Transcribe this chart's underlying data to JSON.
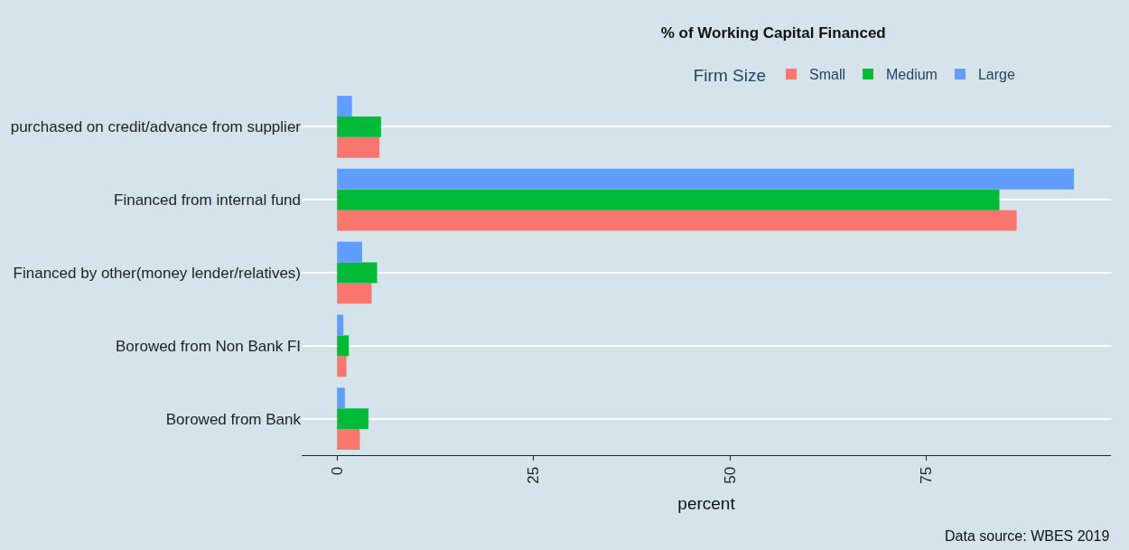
{
  "chart_data": {
    "type": "bar",
    "orientation": "horizontal",
    "title": "% of Working Capital Financed",
    "legend_title": "Firm Size",
    "xlabel": "percent",
    "categories": [
      "purchased on credit/advance from supplier",
      "Financed from internal fund",
      "Financed by other(money lender/relatives)",
      "Borowed from Non Bank FI",
      "Borowed from Bank"
    ],
    "series": [
      {
        "name": "Small",
        "color": "#f8766d",
        "values": [
          5.4,
          86.5,
          4.4,
          1.2,
          2.9
        ]
      },
      {
        "name": "Medium",
        "color": "#00ba38",
        "values": [
          5.6,
          84.3,
          5.1,
          1.5,
          4.0
        ]
      },
      {
        "name": "Large",
        "color": "#619cff",
        "values": [
          1.9,
          93.8,
          3.2,
          0.8,
          1.0
        ]
      }
    ],
    "xlim": [
      -4.5,
      98.5
    ],
    "xticks": [
      0,
      25,
      50,
      75
    ],
    "grid": "y",
    "legend": "top",
    "annotations": [
      "Data source: WBES 2019"
    ]
  }
}
